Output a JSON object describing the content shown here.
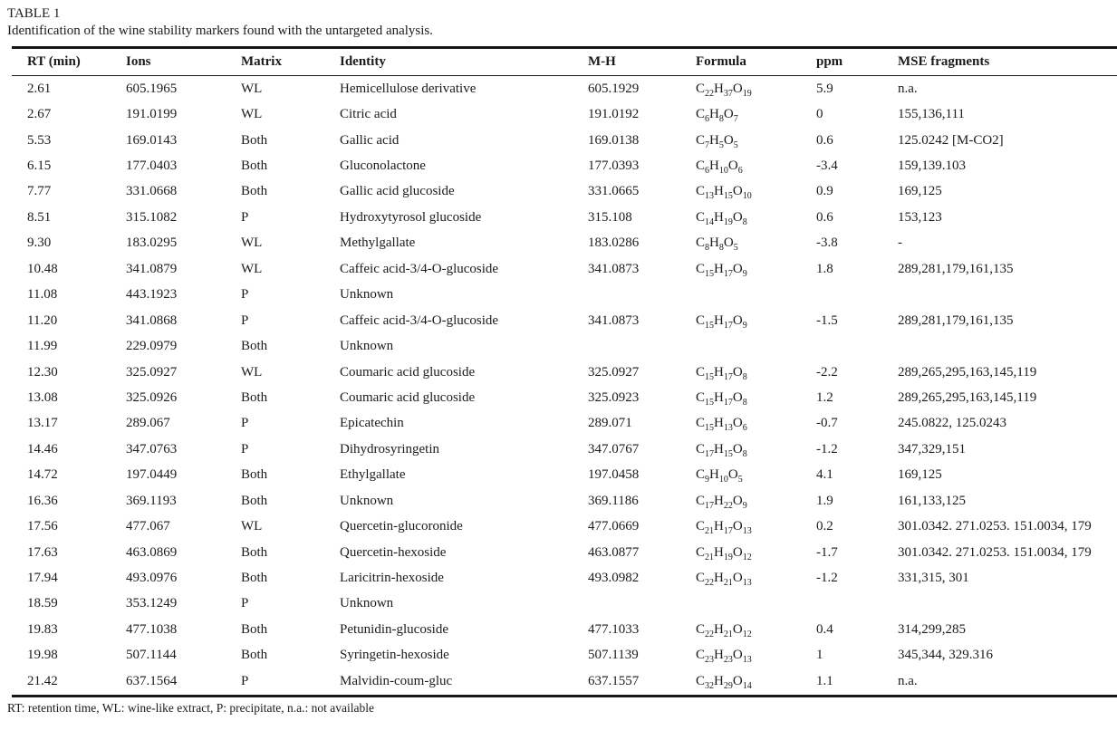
{
  "page": {
    "table_label": "TABLE 1",
    "caption": "Identification of the wine stability markers found with the untargeted analysis.",
    "footnote": "RT: retention time, WL: wine-like extract, P: precipitate, n.a.: not available"
  },
  "table": {
    "columns": [
      {
        "key": "rt",
        "label": "RT (min)"
      },
      {
        "key": "ions",
        "label": "Ions"
      },
      {
        "key": "matrix",
        "label": "Matrix"
      },
      {
        "key": "identity",
        "label": "Identity"
      },
      {
        "key": "mh",
        "label": "M-H"
      },
      {
        "key": "formula",
        "label": "Formula"
      },
      {
        "key": "ppm",
        "label": "ppm"
      },
      {
        "key": "mse",
        "label": "MSE fragments"
      }
    ],
    "rows": [
      {
        "rt": "2.61",
        "ions": "605.1965",
        "matrix": "WL",
        "identity": "Hemicellulose derivative",
        "mh": "605.1929",
        "formula": "C22H37O19",
        "ppm": "5.9",
        "mse": "n.a."
      },
      {
        "rt": "2.67",
        "ions": "191.0199",
        "matrix": "WL",
        "identity": "Citric acid",
        "mh": "191.0192",
        "formula": "C6H8O7",
        "ppm": "0",
        "mse": "155,136,111"
      },
      {
        "rt": "5.53",
        "ions": "169.0143",
        "matrix": "Both",
        "identity": "Gallic acid",
        "mh": "169.0138",
        "formula": "C7H5O5",
        "ppm": "0.6",
        "mse": "125.0242 [M-CO2]"
      },
      {
        "rt": "6.15",
        "ions": "177.0403",
        "matrix": "Both",
        "identity": "Gluconolactone",
        "mh": "177.0393",
        "formula": "C6H10O6",
        "ppm": "-3.4",
        "mse": "159,139.103"
      },
      {
        "rt": "7.77",
        "ions": "331.0668",
        "matrix": "Both",
        "identity": "Gallic acid glucoside",
        "mh": "331.0665",
        "formula": "C13H15O10",
        "ppm": "0.9",
        "mse": "169,125"
      },
      {
        "rt": "8.51",
        "ions": "315.1082",
        "matrix": "P",
        "identity": "Hydroxytyrosol glucoside",
        "mh": "315.108",
        "formula": "C14H19O8",
        "ppm": "0.6",
        "mse": "153,123"
      },
      {
        "rt": "9.30",
        "ions": "183.0295",
        "matrix": "WL",
        "identity": "Methylgallate",
        "mh": "183.0286",
        "formula": "C8H8O5",
        "ppm": "-3.8",
        "mse": "-"
      },
      {
        "rt": "10.48",
        "ions": "341.0879",
        "matrix": "WL",
        "identity": "Caffeic acid-3/4-O-glucoside",
        "mh": "341.0873",
        "formula": "C15H17O9",
        "ppm": "1.8",
        "mse": "289,281,179,161,135"
      },
      {
        "rt": "11.08",
        "ions": "443.1923",
        "matrix": "P",
        "identity": "Unknown",
        "mh": "",
        "formula": "",
        "ppm": "",
        "mse": ""
      },
      {
        "rt": "11.20",
        "ions": "341.0868",
        "matrix": "P",
        "identity": "Caffeic acid-3/4-O-glucoside",
        "mh": "341.0873",
        "formula": "C15H17O9",
        "ppm": "-1.5",
        "mse": "289,281,179,161,135"
      },
      {
        "rt": "11.99",
        "ions": "229.0979",
        "matrix": "Both",
        "identity": "Unknown",
        "mh": "",
        "formula": "",
        "ppm": "",
        "mse": ""
      },
      {
        "rt": "12.30",
        "ions": "325.0927",
        "matrix": "WL",
        "identity": "Coumaric acid glucoside",
        "mh": "325.0927",
        "formula": "C15H17O8",
        "ppm": "-2.2",
        "mse": "289,265,295,163,145,119"
      },
      {
        "rt": "13.08",
        "ions": "325.0926",
        "matrix": "Both",
        "identity": "Coumaric acid glucoside",
        "mh": "325.0923",
        "formula": "C15H17O8",
        "ppm": "1.2",
        "mse": "289,265,295,163,145,119"
      },
      {
        "rt": "13.17",
        "ions": "289.067",
        "matrix": "P",
        "identity": "Epicatechin",
        "mh": "289.071",
        "formula": "C15H13O6",
        "ppm": "-0.7",
        "mse": "245.0822, 125.0243"
      },
      {
        "rt": "14.46",
        "ions": "347.0763",
        "matrix": "P",
        "identity": "Dihydrosyringetin",
        "mh": "347.0767",
        "formula": "C17H15O8",
        "ppm": "-1.2",
        "mse": "347,329,151"
      },
      {
        "rt": "14.72",
        "ions": "197.0449",
        "matrix": "Both",
        "identity": "Ethylgallate",
        "mh": "197.0458",
        "formula": "C9H10O5",
        "ppm": "4.1",
        "mse": "169,125"
      },
      {
        "rt": "16.36",
        "ions": "369.1193",
        "matrix": "Both",
        "identity": "Unknown",
        "mh": "369.1186",
        "formula": "C17H22O9",
        "ppm": "1.9",
        "mse": "161,133,125"
      },
      {
        "rt": "17.56",
        "ions": "477.067",
        "matrix": "WL",
        "identity": "Quercetin-glucoronide",
        "mh": "477.0669",
        "formula": "C21H17O13",
        "ppm": "0.2",
        "mse": "301.0342. 271.0253. 151.0034, 179"
      },
      {
        "rt": "17.63",
        "ions": "463.0869",
        "matrix": "Both",
        "identity": "Quercetin-hexoside",
        "mh": "463.0877",
        "formula": "C21H19O12",
        "ppm": "-1.7",
        "mse": "301.0342. 271.0253. 151.0034, 179"
      },
      {
        "rt": "17.94",
        "ions": "493.0976",
        "matrix": "Both",
        "identity": "Laricitrin-hexoside",
        "mh": "493.0982",
        "formula": "C22H21O13",
        "ppm": "-1.2",
        "mse": "331,315, 301"
      },
      {
        "rt": "18.59",
        "ions": "353.1249",
        "matrix": "P",
        "identity": "Unknown",
        "mh": "",
        "formula": "",
        "ppm": "",
        "mse": ""
      },
      {
        "rt": "19.83",
        "ions": "477.1038",
        "matrix": "Both",
        "identity": "Petunidin-glucoside",
        "mh": "477.1033",
        "formula": "C22H21O12",
        "ppm": "0.4",
        "mse": "314,299,285"
      },
      {
        "rt": "19.98",
        "ions": "507.1144",
        "matrix": "Both",
        "identity": "Syringetin-hexoside",
        "mh": "507.1139",
        "formula": "C23H23O13",
        "ppm": "1",
        "mse": "345,344, 329.316"
      },
      {
        "rt": "21.42",
        "ions": "637.1564",
        "matrix": "P",
        "identity": "Malvidin-coum-gluc",
        "mh": "637.1557",
        "formula": "C32H29O14",
        "ppm": "1.1",
        "mse": "n.a."
      }
    ]
  }
}
